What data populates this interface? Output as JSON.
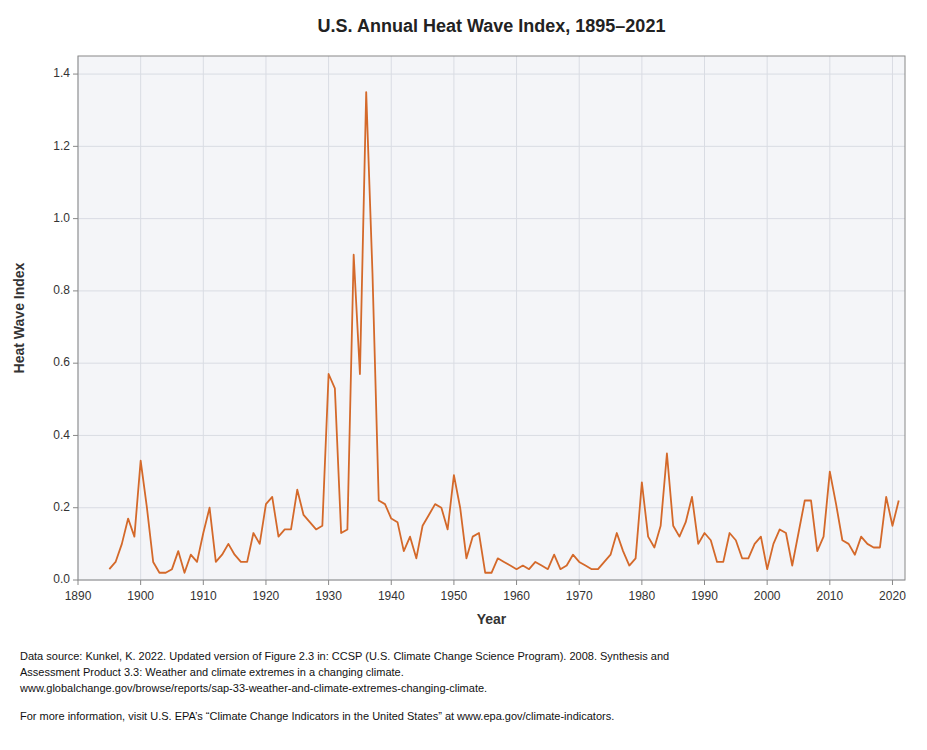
{
  "chart_data": {
    "type": "line",
    "title": "U.S. Annual Heat Wave Index, 1895–2021",
    "xlabel": "Year",
    "ylabel": "Heat Wave Index",
    "color": "#d4692a",
    "grid": true,
    "xlim": [
      1890,
      2022
    ],
    "ylim": [
      0,
      1.45
    ],
    "xticks": [
      1890,
      1900,
      1910,
      1920,
      1930,
      1940,
      1950,
      1960,
      1970,
      1980,
      1990,
      2000,
      2010,
      2020
    ],
    "yticks": [
      {
        "value": 0,
        "label": "0.0"
      },
      0.2,
      0.4,
      0.6,
      0.8,
      {
        "value": 1.0,
        "label": "1.0"
      },
      1.2,
      1.4
    ],
    "annotations": [
      "Data source: Kunkel, K. 2022. Updated version of Figure 2.3 in: CCSP (U.S. Climate Change Science Program). 2008. Synthesis and",
      "Assessment Product 3.3: Weather and climate extremes in a changing climate.",
      "www.globalchange.gov/browse/reports/sap-33-weather-and-climate-extremes-changing-climate.",
      "For more information, visit U.S. EPA’s “Climate Change Indicators in the United States” at www.epa.gov/climate-indicators."
    ],
    "x": [
      1895,
      1896,
      1897,
      1898,
      1899,
      1900,
      1901,
      1902,
      1903,
      1904,
      1905,
      1906,
      1907,
      1908,
      1909,
      1910,
      1911,
      1912,
      1913,
      1914,
      1915,
      1916,
      1917,
      1918,
      1919,
      1920,
      1921,
      1922,
      1923,
      1924,
      1925,
      1926,
      1927,
      1928,
      1929,
      1930,
      1931,
      1932,
      1933,
      1934,
      1935,
      1936,
      1937,
      1938,
      1939,
      1940,
      1941,
      1942,
      1943,
      1944,
      1945,
      1946,
      1947,
      1948,
      1949,
      1950,
      1951,
      1952,
      1953,
      1954,
      1955,
      1956,
      1957,
      1958,
      1959,
      1960,
      1961,
      1962,
      1963,
      1964,
      1965,
      1966,
      1967,
      1968,
      1969,
      1970,
      1971,
      1972,
      1973,
      1974,
      1975,
      1976,
      1977,
      1978,
      1979,
      1980,
      1981,
      1982,
      1983,
      1984,
      1985,
      1986,
      1987,
      1988,
      1989,
      1990,
      1991,
      1992,
      1993,
      1994,
      1995,
      1996,
      1997,
      1998,
      1999,
      2000,
      2001,
      2002,
      2003,
      2004,
      2005,
      2006,
      2007,
      2008,
      2009,
      2010,
      2011,
      2012,
      2013,
      2014,
      2015,
      2016,
      2017,
      2018,
      2019,
      2020,
      2021
    ],
    "values": [
      0.03,
      0.05,
      0.1,
      0.17,
      0.12,
      0.33,
      0.2,
      0.05,
      0.02,
      0.02,
      0.03,
      0.08,
      0.02,
      0.07,
      0.05,
      0.13,
      0.2,
      0.05,
      0.07,
      0.1,
      0.07,
      0.05,
      0.05,
      0.13,
      0.1,
      0.21,
      0.23,
      0.12,
      0.14,
      0.14,
      0.25,
      0.18,
      0.16,
      0.14,
      0.15,
      0.57,
      0.53,
      0.13,
      0.14,
      0.9,
      0.57,
      1.35,
      0.85,
      0.22,
      0.21,
      0.17,
      0.16,
      0.08,
      0.12,
      0.06,
      0.15,
      0.18,
      0.21,
      0.2,
      0.14,
      0.29,
      0.2,
      0.06,
      0.12,
      0.13,
      0.02,
      0.02,
      0.06,
      0.05,
      0.04,
      0.03,
      0.04,
      0.03,
      0.05,
      0.04,
      0.03,
      0.07,
      0.03,
      0.04,
      0.07,
      0.05,
      0.04,
      0.03,
      0.03,
      0.05,
      0.07,
      0.13,
      0.08,
      0.04,
      0.06,
      0.27,
      0.12,
      0.09,
      0.15,
      0.35,
      0.15,
      0.12,
      0.16,
      0.23,
      0.1,
      0.13,
      0.11,
      0.05,
      0.05,
      0.13,
      0.11,
      0.06,
      0.06,
      0.1,
      0.12,
      0.03,
      0.1,
      0.14,
      0.13,
      0.04,
      0.13,
      0.22,
      0.22,
      0.08,
      0.12,
      0.3,
      0.21,
      0.11,
      0.1,
      0.07,
      0.12,
      0.1,
      0.09,
      0.09,
      0.23,
      0.15,
      0.22
    ]
  }
}
